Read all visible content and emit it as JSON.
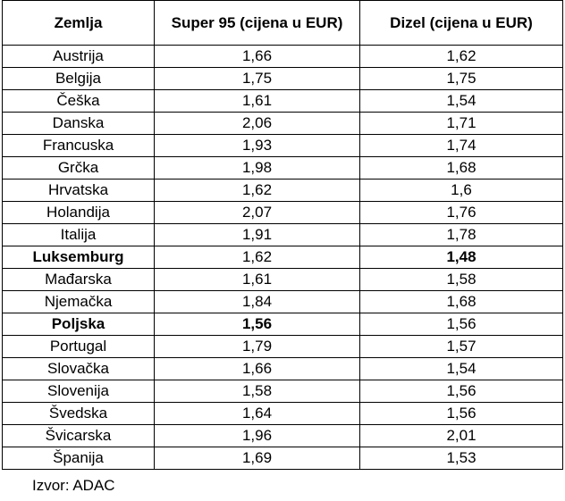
{
  "table": {
    "headers": [
      "Zemlja",
      "Super 95 (cijena u EUR)",
      "Dizel (cijena u EUR)"
    ],
    "rows": [
      {
        "country": "Austrija",
        "super95": "1,66",
        "dizel": "1,62"
      },
      {
        "country": "Belgija",
        "super95": "1,75",
        "dizel": "1,75"
      },
      {
        "country": "Češka",
        "super95": "1,61",
        "dizel": "1,54"
      },
      {
        "country": "Danska",
        "super95": "2,06",
        "dizel": "1,71"
      },
      {
        "country": "Francuska",
        "super95": "1,93",
        "dizel": "1,74"
      },
      {
        "country": "Grčka",
        "super95": "1,98",
        "dizel": "1,68"
      },
      {
        "country": "Hrvatska",
        "super95": "1,62",
        "dizel": "1,6"
      },
      {
        "country": "Holandija",
        "super95": "2,07",
        "dizel": "1,76"
      },
      {
        "country": "Italija",
        "super95": "1,91",
        "dizel": "1,78"
      },
      {
        "country": "Luksemburg",
        "super95": "1,62",
        "dizel": "1,48"
      },
      {
        "country": "Mađarska",
        "super95": "1,61",
        "dizel": "1,58"
      },
      {
        "country": "Njemačka",
        "super95": "1,84",
        "dizel": "1,68"
      },
      {
        "country": "Poljska",
        "super95": "1,56",
        "dizel": "1,56"
      },
      {
        "country": "Portugal",
        "super95": "1,79",
        "dizel": "1,57"
      },
      {
        "country": "Slovačka",
        "super95": "1,66",
        "dizel": "1,54"
      },
      {
        "country": "Slovenija",
        "super95": "1,58",
        "dizel": "1,56"
      },
      {
        "country": "Švedska",
        "super95": "1,64",
        "dizel": "1,56"
      },
      {
        "country": "Švicarska",
        "super95": "1,96",
        "dizel": "2,01"
      },
      {
        "country": "Španija",
        "super95": "1,69",
        "dizel": "1,53"
      }
    ]
  },
  "source": "Izvor: ADAC"
}
